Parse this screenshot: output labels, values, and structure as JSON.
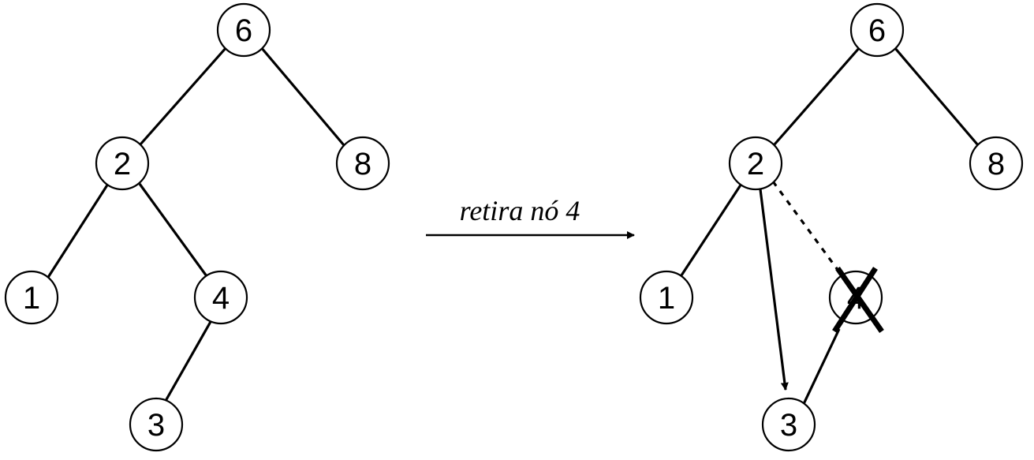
{
  "caption": "retira nó 4",
  "before_tree": {
    "nodes": [
      {
        "id": "6",
        "label": "6"
      },
      {
        "id": "2",
        "label": "2"
      },
      {
        "id": "8",
        "label": "8"
      },
      {
        "id": "1",
        "label": "1"
      },
      {
        "id": "4",
        "label": "4"
      },
      {
        "id": "3",
        "label": "3"
      }
    ]
  },
  "after_tree": {
    "nodes": [
      {
        "id": "6",
        "label": "6"
      },
      {
        "id": "2",
        "label": "2"
      },
      {
        "id": "8",
        "label": "8"
      },
      {
        "id": "1",
        "label": "1"
      },
      {
        "id": "4",
        "label": "4",
        "removed": true
      },
      {
        "id": "3",
        "label": "3"
      }
    ]
  },
  "colors": {
    "stroke": "#000000",
    "fill": "#ffffff"
  }
}
